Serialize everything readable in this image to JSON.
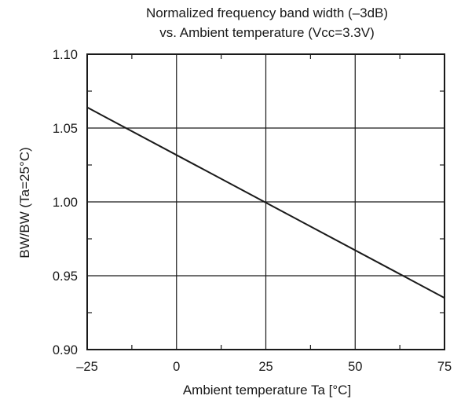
{
  "chart_data": {
    "type": "line",
    "title": [
      "Normalized frequency band width (–3dB)",
      "vs. Ambient temperature (Vcc=3.3V)"
    ],
    "xlabel": "Ambient temperature Ta [°C]",
    "ylabel": "BW/BW (Ta=25°C)",
    "xlim": [
      -25,
      75
    ],
    "ylim": [
      0.9,
      1.1
    ],
    "x_ticks": [
      -25,
      0,
      25,
      50,
      75
    ],
    "x_tick_labels": [
      "–25",
      "0",
      "25",
      "50",
      "75"
    ],
    "y_ticks": [
      0.9,
      0.95,
      1.0,
      1.05,
      1.1
    ],
    "y_tick_labels": [
      "0.90",
      "0.95",
      "1.00",
      "1.05",
      "1.10"
    ],
    "grid": true,
    "series": [
      {
        "x": [
          -25,
          75
        ],
        "y": [
          1.064,
          0.935
        ]
      }
    ],
    "colors": {
      "line": "#1a1a1a",
      "grid": "#1a1a1a",
      "background": "#ffffff"
    }
  }
}
